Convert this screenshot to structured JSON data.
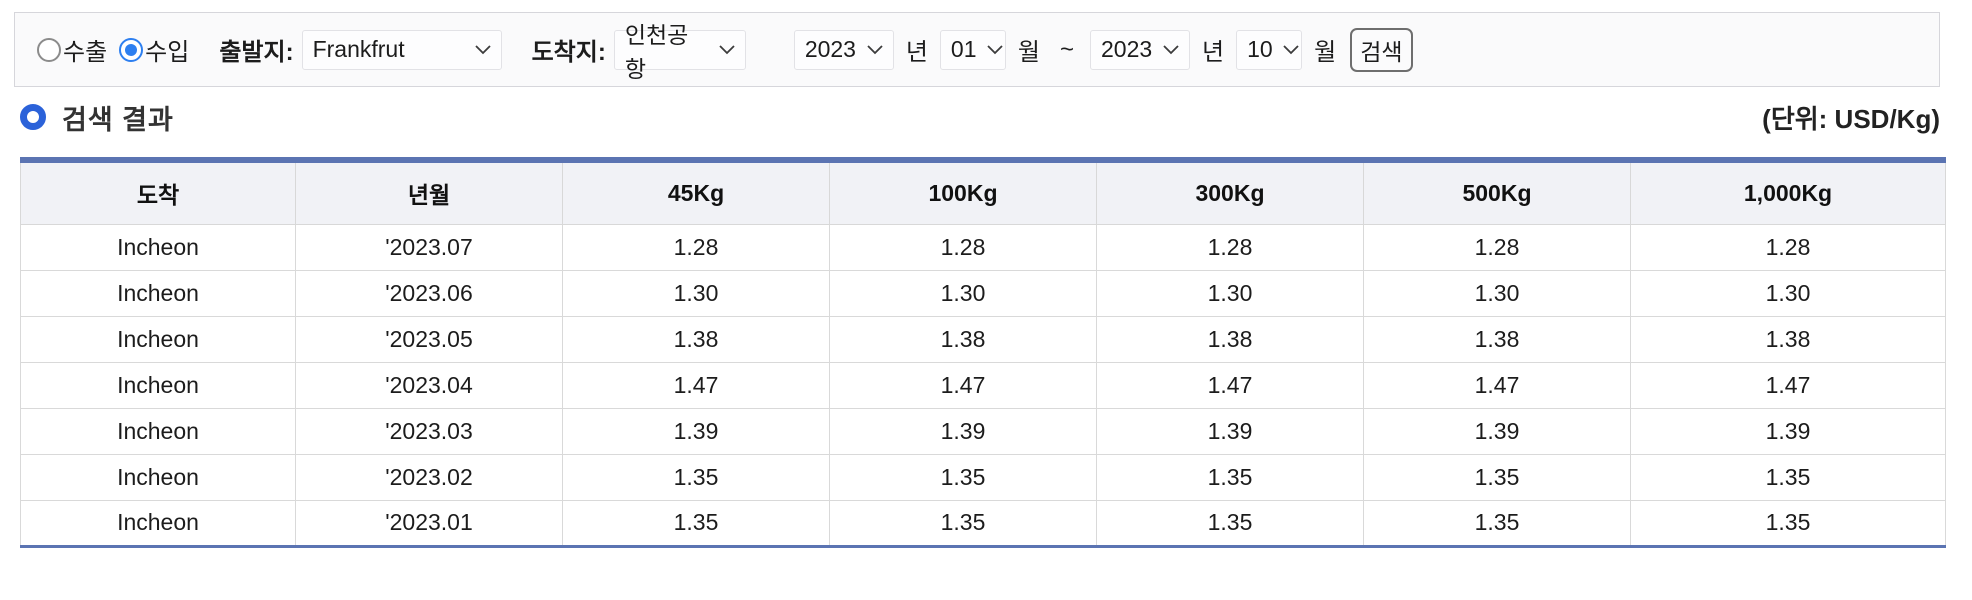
{
  "search_bar": {
    "export_option": {
      "label": "수출",
      "selected": false
    },
    "import_option": {
      "label": "수입",
      "selected": true
    },
    "origin": {
      "label": "출발지:",
      "value": "Frankfrut"
    },
    "destination": {
      "label": "도착지:",
      "value": "인천공항"
    },
    "period": {
      "start_year": "2023",
      "start_month": "01",
      "end_year": "2023",
      "end_month": "10",
      "year_unit": "년",
      "month_unit": "월",
      "range_separator": "~"
    },
    "search_button_label": "검색"
  },
  "results": {
    "section_title": "검색 결과",
    "unit_label": "(단위: USD/Kg)"
  },
  "table": {
    "headers": [
      "도착",
      "년월",
      "45Kg",
      "100Kg",
      "300Kg",
      "500Kg",
      "1,000Kg"
    ],
    "rows": [
      [
        "Incheon",
        "'2023.07",
        "1.28",
        "1.28",
        "1.28",
        "1.28",
        "1.28"
      ],
      [
        "Incheon",
        "'2023.06",
        "1.30",
        "1.30",
        "1.30",
        "1.30",
        "1.30"
      ],
      [
        "Incheon",
        "'2023.05",
        "1.38",
        "1.38",
        "1.38",
        "1.38",
        "1.38"
      ],
      [
        "Incheon",
        "'2023.04",
        "1.47",
        "1.47",
        "1.47",
        "1.47",
        "1.47"
      ],
      [
        "Incheon",
        "'2023.03",
        "1.39",
        "1.39",
        "1.39",
        "1.39",
        "1.39"
      ],
      [
        "Incheon",
        "'2023.02",
        "1.35",
        "1.35",
        "1.35",
        "1.35",
        "1.35"
      ],
      [
        "Incheon",
        "'2023.01",
        "1.35",
        "1.35",
        "1.35",
        "1.35",
        "1.35"
      ]
    ]
  },
  "colors": {
    "table_accent": "#5b74b2",
    "header_row_bg": "#f1f2f6",
    "radio_selected": "#2d7ff0",
    "section_icon_blue": "#2b62d9",
    "border_gray": "#d9d9d9"
  }
}
